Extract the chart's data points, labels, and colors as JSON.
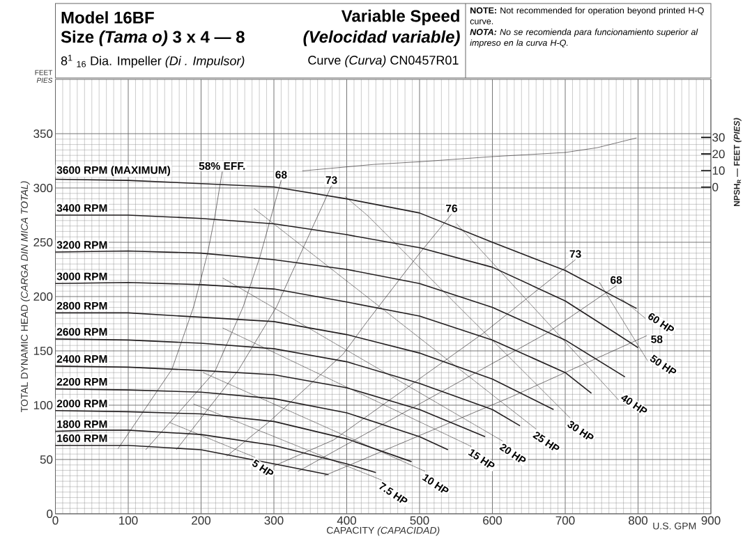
{
  "chart_data": {
    "type": "line",
    "title": "Model 16BF",
    "subtitle": "Size *(Tama o)*  3 x 4 — 8",
    "xlabel": "CAPACITY *(CAPACIDAD)*",
    "ylabel": "TOTAL DYNAMIC HEAD *(CARGA DIN MICA TOTAL)*",
    "y2label": "NPSH$_{R}$ — FEET *(PIES)*",
    "annotations": [
      "Variable Speed",
      "*(Velocidad variable)*",
      "8$^{1}$ $_{16}$ Dia. Impeller *(Di . Impulsor)*",
      "Curve *(Curva)* CN0457R01",
      "**NOTE:** Not recommended for operation beyond printed H-Q curve.",
      "**NOTA:** No se recomienda para funcionamiento superior al impreso en la curva H-Q.",
      "FEET",
      "PIES",
      "U.S. GPM"
    ],
    "xlim": [
      0,
      900
    ],
    "ylim": [
      0,
      400
    ],
    "y2lim": [
      -197,
      65
    ],
    "xticks": [
      0,
      100,
      200,
      300,
      400,
      500,
      600,
      700,
      800,
      900
    ],
    "yticks": [
      0,
      50,
      100,
      150,
      200,
      250,
      300,
      350
    ],
    "y2ticks": [
      0,
      10,
      20,
      30
    ],
    "grid": true,
    "marker": "none",
    "series": [
      {
        "name": "3600 RPM (MAXIMUM)",
        "color": "#231f20",
        "x": [
          0,
          100,
          200,
          300,
          400,
          500,
          600,
          700,
          798
        ],
        "values": [
          308,
          307,
          304,
          301,
          290,
          277,
          250,
          224,
          189
        ]
      },
      {
        "name": "3400 RPM",
        "color": "#231f20",
        "x": [
          0,
          100,
          200,
          300,
          400,
          500,
          600,
          700,
          770,
          800
        ],
        "values": [
          275,
          275,
          272,
          267,
          257,
          245,
          227,
          196,
          166,
          153
        ]
      },
      {
        "name": "3200 RPM",
        "color": "#231f20",
        "x": [
          0,
          100,
          200,
          300,
          400,
          500,
          600,
          700,
          782
        ],
        "values": [
          241,
          242,
          240,
          234,
          225,
          212,
          190,
          160,
          126
        ]
      },
      {
        "name": "3000 RPM",
        "color": "#231f20",
        "x": [
          0,
          100,
          200,
          300,
          400,
          500,
          600,
          700,
          736
        ],
        "values": [
          212,
          213,
          211,
          207,
          195,
          182,
          160,
          130,
          111
        ]
      },
      {
        "name": "2800 RPM",
        "color": "#231f20",
        "x": [
          0,
          100,
          200,
          300,
          400,
          500,
          600,
          684
        ],
        "values": [
          185,
          185,
          181,
          177,
          165,
          148,
          124,
          96
        ]
      },
      {
        "name": "2600 RPM",
        "color": "#231f20",
        "x": [
          0,
          100,
          200,
          300,
          400,
          500,
          600,
          638
        ],
        "values": [
          161,
          160,
          157,
          152,
          140,
          120,
          96,
          81
        ]
      },
      {
        "name": "2400 RPM",
        "color": "#231f20",
        "x": [
          0,
          100,
          200,
          300,
          400,
          500,
          590
        ],
        "values": [
          136,
          135,
          132,
          128,
          116,
          96,
          71
        ]
      },
      {
        "name": "2200 RPM",
        "color": "#231f20",
        "x": [
          0,
          100,
          200,
          300,
          400,
          500,
          539
        ],
        "values": [
          115,
          114,
          112,
          106,
          93,
          71,
          59
        ]
      },
      {
        "name": "2000 RPM",
        "color": "#231f20",
        "x": [
          0,
          100,
          200,
          300,
          400,
          489
        ],
        "values": [
          95,
          94,
          92,
          85,
          69,
          48
        ]
      },
      {
        "name": "1800 RPM",
        "color": "#231f20",
        "x": [
          0,
          50,
          100,
          200,
          300,
          400,
          440
        ],
        "values": [
          76,
          77,
          77,
          73,
          63,
          46,
          38
        ]
      },
      {
        "name": "1600 RPM",
        "color": "#231f20",
        "x": [
          0,
          100,
          200,
          300,
          375
        ],
        "values": [
          63,
          63,
          59,
          46,
          36
        ]
      },
      {
        "name": "58% EFF.",
        "color": "#231f20",
        "x": [
          86,
          160,
          190,
          209,
          219,
          229
        ],
        "values": [
          60,
          133,
          191,
          240,
          274,
          315
        ]
      },
      {
        "name": "68",
        "color": "#231f20",
        "x": [
          124,
          219,
          258,
          281,
          310
        ],
        "values": [
          59,
          131,
          191,
          237,
          307
        ]
      },
      {
        "name": "73",
        "color": "#231f20",
        "x": [
          166,
          251,
          304,
          322,
          379
        ],
        "values": [
          59,
          132,
          191,
          218,
          302
        ]
      },
      {
        "name": "76",
        "color": "#231f20",
        "x": [
          235,
          294,
          395,
          428,
          499,
          544
        ],
        "values": [
          53,
          85,
          147,
          177,
          239,
          276
        ]
      },
      {
        "name": "73",
        "color": "#231f20",
        "x": [
          300,
          382,
          587,
          714
        ],
        "values": [
          44,
          68,
          166,
          234
        ]
      },
      {
        "name": "68",
        "color": "#231f20",
        "x": [
          333,
          674,
          770
        ],
        "values": [
          39,
          166,
          210
        ]
      },
      {
        "name": "58",
        "color": "#231f20",
        "x": [
          369,
          627,
          812
        ],
        "values": [
          35,
          108,
          164
        ]
      },
      {
        "name": "5 HP",
        "color": "#231f20",
        "line_style": "dashed",
        "x": [
          157,
          274
        ],
        "values": [
          84,
          52
        ]
      },
      {
        "name": "7.5 HP",
        "color": "#231f20",
        "line_style": "dashed",
        "x": [
          190,
          448
        ],
        "values": [
          101,
          31
        ]
      },
      {
        "name": "10 HP",
        "color": "#231f20",
        "line_style": "dashed",
        "x": [
          203,
          508
        ],
        "values": [
          130,
          39
        ]
      },
      {
        "name": "15 HP",
        "color": "#231f20",
        "line_style": "dashed",
        "x": [
          230,
          571
        ],
        "values": [
          171,
          62
        ]
      },
      {
        "name": "20 HP",
        "color": "#231f20",
        "line_style": "dashed",
        "x": [
          230,
          614
        ],
        "values": [
          217,
          67
        ]
      },
      {
        "name": "25 HP",
        "color": "#231f20",
        "line_style": "dashed",
        "x": [
          273,
          660
        ],
        "values": [
          281,
          78
        ]
      },
      {
        "name": "30 HP",
        "color": "#231f20",
        "line_style": "dashed",
        "x": [
          398,
          428,
          707
        ],
        "values": [
          292,
          275,
          88
        ]
      },
      {
        "name": "40 HP",
        "color": "#231f20",
        "line_style": "dashed",
        "x": [
          551,
          773
        ],
        "values": [
          267,
          105
        ]
      },
      {
        "name": "50 HP",
        "color": "#231f20",
        "line_style": "dashed",
        "x": [
          747,
          813
        ],
        "values": [
          213,
          141
        ]
      },
      {
        "name": "60 HP",
        "color": "#231f20",
        "line_style": "dashed",
        "x": [
          777,
          810
        ],
        "values": [
          198,
          180
        ]
      },
      {
        "color": "#231f20",
        "axis": "y2",
        "x": [
          339,
          437,
          500,
          600,
          700,
          744,
          798
        ],
        "values": [
          9.8,
          13.7,
          15.3,
          18.4,
          20.9,
          23.8,
          29.7
        ]
      }
    ]
  }
}
